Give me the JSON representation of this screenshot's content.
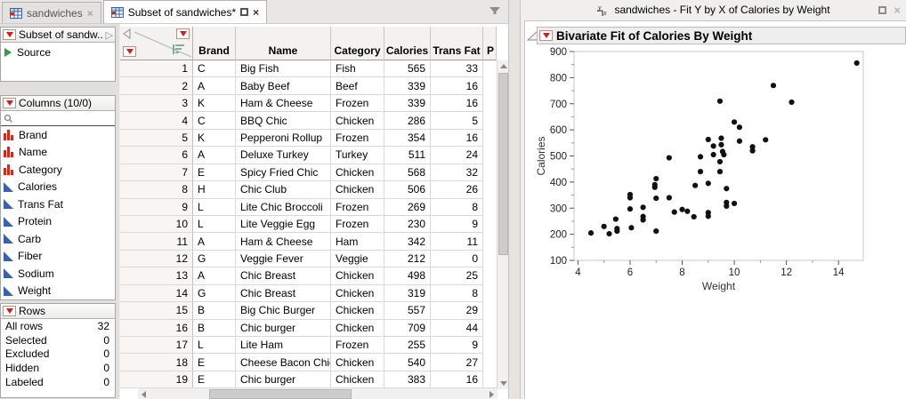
{
  "left_window": {
    "tabs": [
      {
        "label": "sandwiches"
      },
      {
        "label": "Subset of sandwiches*"
      }
    ]
  },
  "sidebar": {
    "table_panel": {
      "title": "Subset of sandw...",
      "source_label": "Source"
    },
    "columns_panel": {
      "title": "Columns (10/0)",
      "items": [
        {
          "name": "Brand",
          "type": "nominal"
        },
        {
          "name": "Name",
          "type": "nominal"
        },
        {
          "name": "Category",
          "type": "nominal"
        },
        {
          "name": "Calories",
          "type": "continuous"
        },
        {
          "name": "Trans Fat",
          "type": "continuous"
        },
        {
          "name": "Protein",
          "type": "continuous"
        },
        {
          "name": "Carb",
          "type": "continuous"
        },
        {
          "name": "Fiber",
          "type": "continuous"
        },
        {
          "name": "Sodium",
          "type": "continuous"
        },
        {
          "name": "Weight",
          "type": "continuous"
        }
      ]
    },
    "rows_panel": {
      "title": "Rows",
      "stats": [
        {
          "label": "All rows",
          "value": "32"
        },
        {
          "label": "Selected",
          "value": "0"
        },
        {
          "label": "Excluded",
          "value": "0"
        },
        {
          "label": "Hidden",
          "value": "0"
        },
        {
          "label": "Labeled",
          "value": "0"
        }
      ]
    }
  },
  "table": {
    "headers": [
      "Brand",
      "Name",
      "Category",
      "Calories",
      "Trans Fat",
      "P"
    ],
    "rows": [
      [
        "1",
        "C",
        "Big Fish",
        "Fish",
        "565",
        "33"
      ],
      [
        "2",
        "A",
        "Baby Beef",
        "Beef",
        "339",
        "16"
      ],
      [
        "3",
        "K",
        "Ham & Cheese",
        "Frozen",
        "339",
        "16"
      ],
      [
        "4",
        "C",
        "BBQ Chic",
        "Chicken",
        "286",
        "5"
      ],
      [
        "5",
        "K",
        "Pepperoni Rollup",
        "Frozen",
        "354",
        "16"
      ],
      [
        "6",
        "A",
        "Deluxe Turkey",
        "Turkey",
        "511",
        "24"
      ],
      [
        "7",
        "E",
        "Spicy Fried Chic",
        "Chicken",
        "568",
        "32"
      ],
      [
        "8",
        "H",
        "Chic Club",
        "Chicken",
        "506",
        "26"
      ],
      [
        "9",
        "L",
        "Lite Chic Broccoli",
        "Frozen",
        "269",
        "8"
      ],
      [
        "10",
        "L",
        "Lite Veggie Egg",
        "Frozen",
        "230",
        "9"
      ],
      [
        "11",
        "A",
        "Ham & Cheese",
        "Ham",
        "342",
        "11"
      ],
      [
        "12",
        "G",
        "Veggie Fever",
        "Veggie",
        "212",
        "0"
      ],
      [
        "13",
        "A",
        "Chic Breast",
        "Chicken",
        "498",
        "25"
      ],
      [
        "14",
        "G",
        "Chic Breast",
        "Chicken",
        "319",
        "8"
      ],
      [
        "15",
        "B",
        "Big Chic Burger",
        "Chicken",
        "557",
        "29"
      ],
      [
        "16",
        "B",
        "Chic burger",
        "Chicken",
        "709",
        "44"
      ],
      [
        "17",
        "L",
        "Lite Ham",
        "Frozen",
        "255",
        "9"
      ],
      [
        "18",
        "E",
        "Cheese Bacon Chic",
        "Chicken",
        "540",
        "27"
      ],
      [
        "19",
        "E",
        "Chic burger",
        "Chicken",
        "383",
        "16"
      ]
    ]
  },
  "report_window": {
    "title": "sandwiches - Fit Y by X of Calories by Weight",
    "section_title": "Bivariate Fit of Calories By Weight"
  },
  "chart_data": {
    "type": "scatter",
    "title": "Bivariate Fit of Calories By Weight",
    "xlabel": "Weight",
    "ylabel": "Calories",
    "xlim": [
      3.85,
      14.95
    ],
    "ylim": [
      100,
      900
    ],
    "x_ticks": [
      4,
      6,
      8,
      10,
      12,
      14
    ],
    "y_ticks": [
      100,
      200,
      300,
      400,
      500,
      600,
      700,
      800,
      900
    ],
    "point_color": "#111111",
    "points": [
      [
        4.5,
        205
      ],
      [
        5.0,
        230
      ],
      [
        5.2,
        202
      ],
      [
        5.45,
        258
      ],
      [
        5.5,
        222
      ],
      [
        5.5,
        212
      ],
      [
        6.0,
        352
      ],
      [
        6.0,
        340
      ],
      [
        6.0,
        297
      ],
      [
        6.05,
        225
      ],
      [
        6.5,
        303
      ],
      [
        6.5,
        268
      ],
      [
        6.5,
        255
      ],
      [
        6.95,
        390
      ],
      [
        6.95,
        380
      ],
      [
        7.0,
        413
      ],
      [
        7.0,
        338
      ],
      [
        7.0,
        212
      ],
      [
        7.5,
        493
      ],
      [
        7.5,
        340
      ],
      [
        7.7,
        285
      ],
      [
        8.0,
        295
      ],
      [
        8.2,
        288
      ],
      [
        8.45,
        267
      ],
      [
        8.5,
        387
      ],
      [
        8.7,
        497
      ],
      [
        8.7,
        440
      ],
      [
        9.0,
        563
      ],
      [
        9.0,
        395
      ],
      [
        9.0,
        283
      ],
      [
        9.0,
        269
      ],
      [
        9.2,
        538
      ],
      [
        9.2,
        505
      ],
      [
        9.45,
        710
      ],
      [
        9.45,
        478
      ],
      [
        9.45,
        440
      ],
      [
        9.5,
        568
      ],
      [
        9.5,
        543
      ],
      [
        9.55,
        517
      ],
      [
        9.6,
        505
      ],
      [
        9.7,
        375
      ],
      [
        9.7,
        322
      ],
      [
        9.7,
        308
      ],
      [
        10.0,
        630
      ],
      [
        10.0,
        318
      ],
      [
        10.2,
        610
      ],
      [
        10.2,
        557
      ],
      [
        10.7,
        535
      ],
      [
        10.7,
        520
      ],
      [
        11.2,
        562
      ],
      [
        11.5,
        770
      ],
      [
        12.2,
        706
      ],
      [
        14.7,
        856
      ]
    ]
  }
}
